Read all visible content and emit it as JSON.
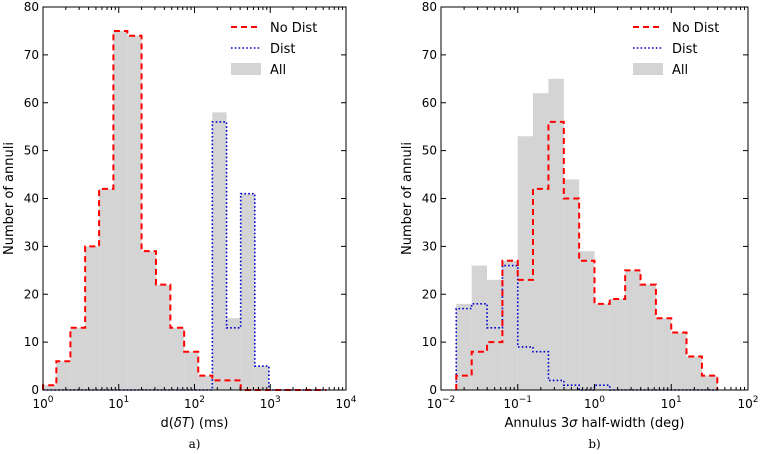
{
  "colors": {
    "all": "#d4d4d4",
    "no_dist": "#ff0000",
    "dist": "#0000cc"
  },
  "chart_data": [
    {
      "type": "histogram",
      "panel_label": "a)",
      "xlabel_prefix": "d(",
      "xlabel_italic": "δT",
      "xlabel_suffix": ") (ms)",
      "ylabel": "Number of annuli",
      "xscale": "log",
      "xlim": [
        1,
        10000
      ],
      "ylim": [
        0,
        80
      ],
      "xticks": [
        {
          "value": 1,
          "base": "10",
          "exp": "0"
        },
        {
          "value": 10,
          "base": "10",
          "exp": "1"
        },
        {
          "value": 100,
          "base": "10",
          "exp": "2"
        },
        {
          "value": 1000,
          "base": "10",
          "exp": "3"
        },
        {
          "value": 10000,
          "base": "10",
          "exp": "4"
        }
      ],
      "yticks": [
        0,
        10,
        20,
        30,
        40,
        50,
        60,
        70,
        80
      ],
      "legend": {
        "location": "top-right",
        "entries": [
          {
            "key": "no_dist",
            "label": "No Dist"
          },
          {
            "key": "dist",
            "label": "Dist"
          },
          {
            "key": "all",
            "label": "All"
          }
        ]
      },
      "bin_edges": [
        1,
        1.5,
        2.3,
        3.6,
        5.5,
        8.5,
        13,
        20,
        31,
        48,
        73,
        112,
        172,
        265,
        407,
        625,
        960,
        1500,
        2300,
        3600,
        5500
      ],
      "series": [
        {
          "key": "all",
          "name": "All",
          "counts": [
            1,
            6,
            13,
            30,
            42,
            75,
            74,
            29,
            22,
            13,
            8,
            3,
            58,
            15,
            41,
            5,
            0,
            0,
            0,
            0
          ]
        },
        {
          "key": "no_dist",
          "name": "No Dist",
          "counts": [
            1,
            6,
            13,
            30,
            42,
            75,
            74,
            29,
            22,
            13,
            8,
            3,
            2,
            2,
            0,
            0,
            0,
            0,
            0,
            0
          ]
        },
        {
          "key": "dist",
          "name": "Dist",
          "counts": [
            0,
            0,
            0,
            0,
            0,
            0,
            0,
            0,
            0,
            0,
            0,
            0,
            56,
            13,
            41,
            5,
            0,
            0,
            0,
            0
          ]
        }
      ]
    },
    {
      "type": "histogram",
      "panel_label": "b)",
      "xlabel_prefix": "Annulus 3",
      "xlabel_italic": "σ",
      "xlabel_suffix": " half-width (deg)",
      "ylabel": "Number of annuli",
      "xscale": "log",
      "xlim": [
        0.01,
        100
      ],
      "ylim": [
        0,
        80
      ],
      "xticks": [
        {
          "value": 0.01,
          "base": "10",
          "exp": "−2"
        },
        {
          "value": 0.1,
          "base": "10",
          "exp": "−1"
        },
        {
          "value": 1,
          "base": "10",
          "exp": "0"
        },
        {
          "value": 10,
          "base": "10",
          "exp": "1"
        },
        {
          "value": 100,
          "base": "10",
          "exp": "2"
        }
      ],
      "yticks": [
        0,
        10,
        20,
        30,
        40,
        50,
        60,
        70,
        80
      ],
      "legend": {
        "location": "top-right",
        "entries": [
          {
            "key": "no_dist",
            "label": "No Dist"
          },
          {
            "key": "dist",
            "label": "Dist"
          },
          {
            "key": "all",
            "label": "All"
          }
        ]
      },
      "bin_edges": [
        0.0158,
        0.0251,
        0.0398,
        0.0631,
        0.1,
        0.158,
        0.251,
        0.398,
        0.631,
        1,
        1.58,
        2.51,
        3.98,
        6.31,
        10,
        15.8,
        25.1,
        39.8
      ],
      "series": [
        {
          "key": "all",
          "name": "All",
          "counts": [
            18,
            26,
            23,
            27,
            53,
            62,
            65,
            44,
            29,
            18,
            19,
            25,
            22,
            15,
            12,
            7,
            3
          ]
        },
        {
          "key": "no_dist",
          "name": "No Dist",
          "counts": [
            3,
            8,
            10,
            27,
            23,
            42,
            56,
            40,
            27,
            18,
            19,
            25,
            22,
            15,
            12,
            7,
            3
          ]
        },
        {
          "key": "dist",
          "name": "Dist",
          "counts": [
            17,
            18,
            13,
            26,
            9,
            8,
            2,
            1,
            0,
            1,
            0,
            0,
            0,
            0,
            0,
            0,
            0
          ]
        }
      ]
    }
  ]
}
